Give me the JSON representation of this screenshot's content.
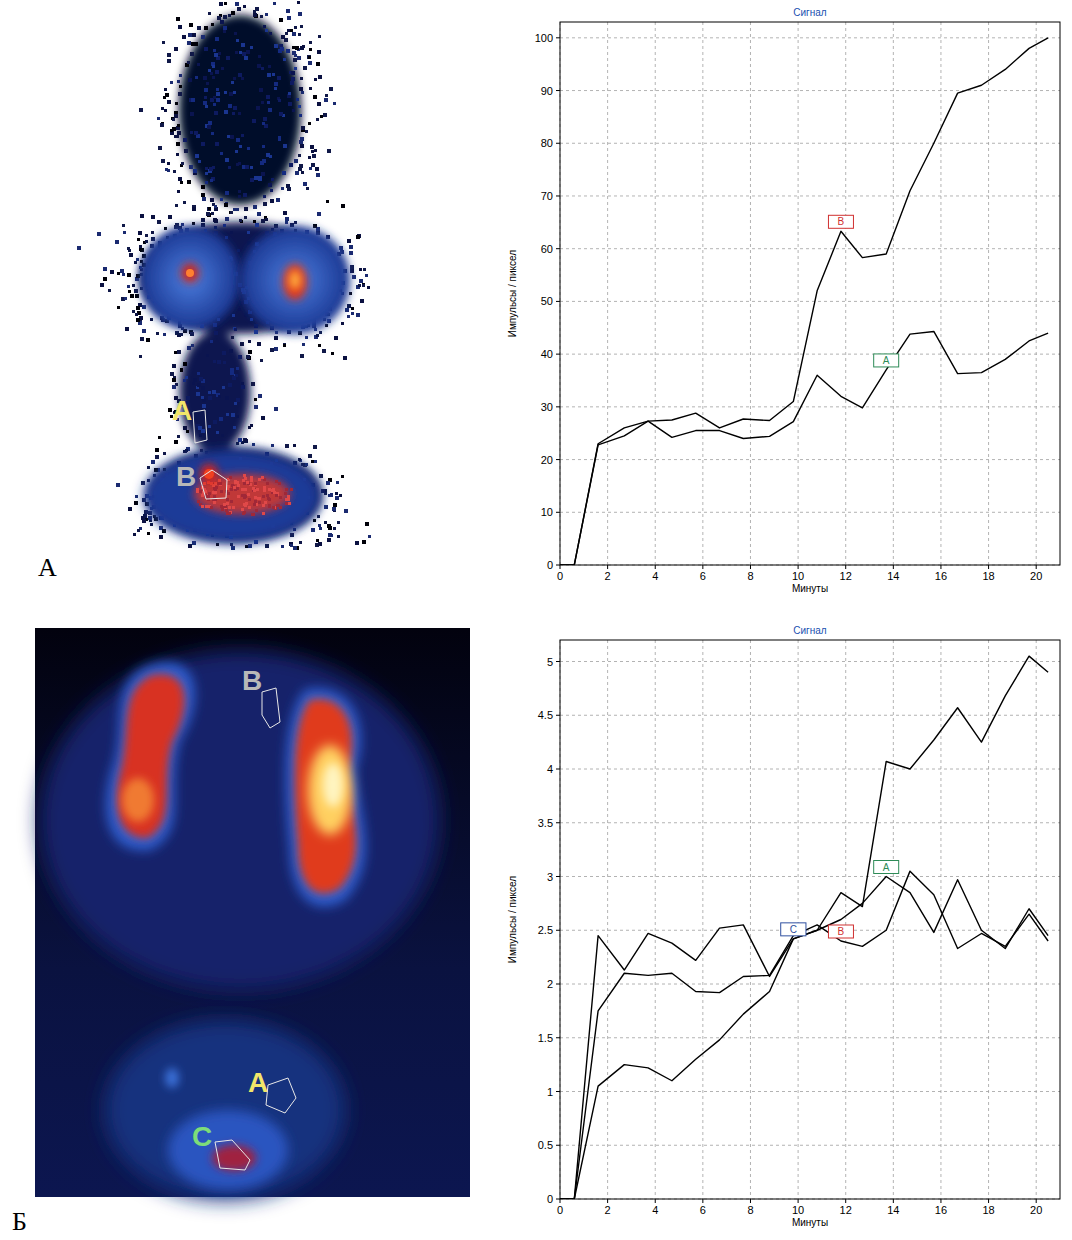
{
  "figure": {
    "panel_labels": [
      "А",
      "Б"
    ],
    "roi_labels": [
      [
        "A",
        "B"
      ],
      [
        "B",
        "A",
        "C"
      ]
    ]
  },
  "chart_data": [
    {
      "type": "line",
      "title": "Сигнал",
      "x_label": "Минуты",
      "y_label": "Импульсы / пиксел",
      "x": [
        0,
        0.6,
        1.6,
        2.7,
        3.7,
        4.7,
        5.7,
        6.7,
        7.7,
        8.8,
        9.8,
        10.8,
        11.8,
        12.7,
        13.7,
        14.7,
        15.7,
        16.7,
        17.7,
        18.7,
        19.7,
        20.5
      ],
      "series": [
        {
          "name": "B",
          "color": "#d03030",
          "values": [
            0,
            0,
            23,
            26,
            27.3,
            27.5,
            28.8,
            26,
            27.7,
            27.4,
            31,
            52,
            63.3,
            58.3,
            59,
            71,
            80,
            89.5,
            91,
            94,
            98,
            100
          ]
        },
        {
          "name": "A",
          "color": "#2e8b57",
          "values": [
            0,
            0,
            22.8,
            24.5,
            27.3,
            24.2,
            25.5,
            25.5,
            24,
            24.4,
            27.2,
            36,
            32,
            29.8,
            37,
            43.8,
            44.3,
            36.3,
            36.5,
            39,
            42.5,
            44
          ]
        }
      ],
      "xlim": [
        0,
        21
      ],
      "ylim": [
        0,
        103
      ],
      "xticks": [
        0,
        2,
        4,
        6,
        8,
        10,
        12,
        14,
        16,
        18,
        20
      ],
      "yticks": [
        0,
        10,
        20,
        30,
        40,
        50,
        60,
        70,
        80,
        90,
        100
      ],
      "grid": true
    },
    {
      "type": "line",
      "title": "Сигнал",
      "x_label": "Минуты",
      "y_label": "Импульсы / пиксел",
      "x": [
        0,
        0.6,
        1.6,
        2.7,
        3.7,
        4.7,
        5.7,
        6.7,
        7.7,
        8.8,
        9.8,
        10.8,
        11.8,
        12.7,
        13.7,
        14.7,
        15.7,
        16.7,
        17.7,
        18.7,
        19.7,
        20.5
      ],
      "series": [
        {
          "name": "A",
          "color": "#2e8b57",
          "values": [
            0,
            0,
            2.45,
            2.13,
            2.47,
            2.38,
            2.22,
            2.52,
            2.55,
            2.07,
            2.42,
            2.5,
            2.6,
            2.75,
            3.0,
            2.85,
            2.48,
            2.97,
            2.5,
            2.33,
            2.7,
            2.45
          ]
        },
        {
          "name": "B",
          "color": "#d03030",
          "values": [
            0,
            0,
            1.75,
            2.1,
            2.08,
            2.1,
            1.93,
            1.92,
            2.07,
            2.08,
            2.45,
            2.55,
            2.4,
            2.35,
            2.5,
            3.05,
            2.83,
            2.33,
            2.47,
            2.35,
            2.65,
            2.4
          ]
        },
        {
          "name": "C",
          "color": "#3050a0",
          "values": [
            0,
            0,
            1.05,
            1.25,
            1.22,
            1.1,
            1.3,
            1.48,
            1.72,
            1.93,
            2.42,
            2.5,
            2.85,
            2.72,
            4.07,
            4.0,
            4.27,
            4.57,
            4.25,
            4.68,
            5.05,
            4.9
          ]
        }
      ],
      "xlim": [
        0,
        21
      ],
      "ylim": [
        0,
        5.2
      ],
      "xticks": [
        0,
        2,
        4,
        6,
        8,
        10,
        12,
        14,
        16,
        18,
        20
      ],
      "yticks": [
        0,
        0.5,
        1,
        1.5,
        2,
        2.5,
        3,
        3.5,
        4,
        4.5,
        5
      ],
      "grid": true
    }
  ]
}
